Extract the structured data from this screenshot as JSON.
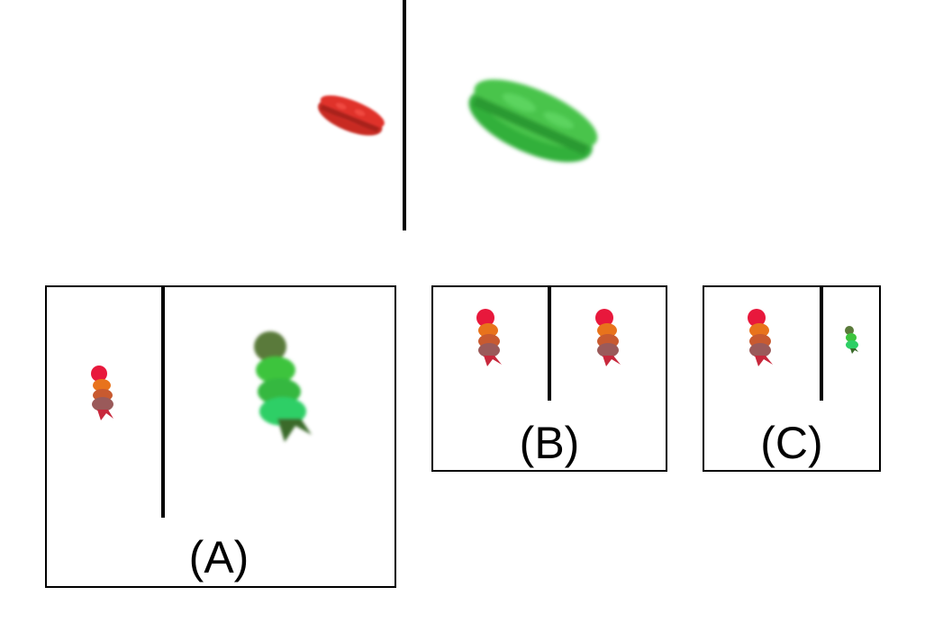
{
  "reference": {
    "left_object": "sandwich-red",
    "right_object": "sandwich-green"
  },
  "options": [
    {
      "label": "(A)",
      "left_object": "figure-red-orange",
      "right_object": "figure-green-large"
    },
    {
      "label": "(B)",
      "left_object": "figure-red-orange",
      "right_object": "figure-red-orange"
    },
    {
      "label": "(C)",
      "left_object": "figure-red-orange",
      "right_object": "figure-green-small"
    }
  ],
  "colors": {
    "red": "#e0302a",
    "orange": "#e8731c",
    "mauve": "#9a5a5a",
    "crimson": "#e8183c",
    "green_light": "#3cd64a",
    "green_mid": "#2fb83a",
    "olive": "#5a7a3a"
  }
}
